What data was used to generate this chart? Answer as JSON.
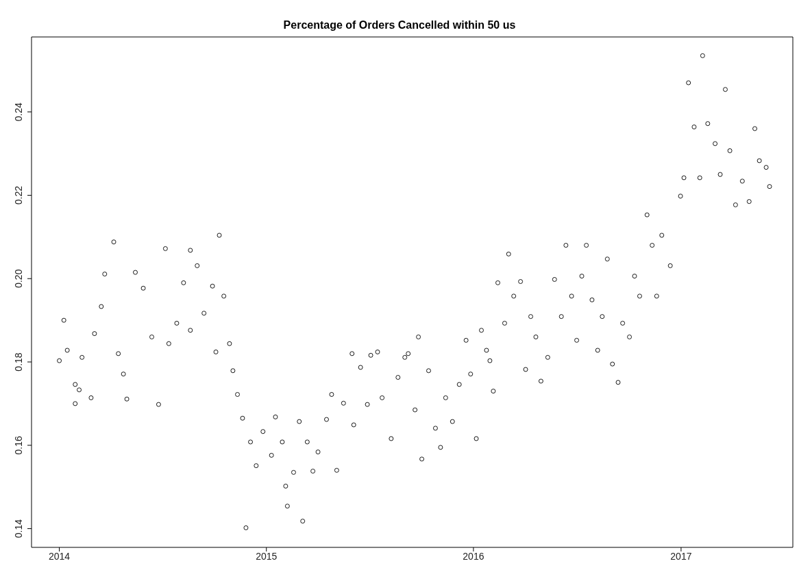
{
  "chart_data": {
    "type": "scatter",
    "title": "Percentage of Orders Cancelled within 50 us",
    "x": [
      "2014-01-01",
      "2014-01-09",
      "2014-01-15",
      "2014-01-29",
      "2014-01-29",
      "2014-02-05",
      "2014-02-10",
      "2014-02-26",
      "2014-03-04",
      "2014-03-16",
      "2014-03-22",
      "2014-04-07",
      "2014-04-15",
      "2014-04-24",
      "2014-04-30",
      "2014-05-15",
      "2014-05-29",
      "2014-06-13",
      "2014-06-25",
      "2014-07-07",
      "2014-07-13",
      "2014-07-27",
      "2014-08-08",
      "2014-08-20",
      "2014-08-20",
      "2014-09-01",
      "2014-09-13",
      "2014-09-28",
      "2014-10-04",
      "2014-10-10",
      "2014-10-18",
      "2014-10-28",
      "2014-11-03",
      "2014-11-11",
      "2014-11-20",
      "2014-11-26",
      "2014-12-04",
      "2014-12-14",
      "2014-12-26",
      "2015-01-10",
      "2015-01-17",
      "2015-01-29",
      "2015-02-04",
      "2015-02-07",
      "2015-02-18",
      "2015-02-28",
      "2015-03-06",
      "2015-03-14",
      "2015-03-24",
      "2015-04-02",
      "2015-04-17",
      "2015-04-26",
      "2015-05-05",
      "2015-05-17",
      "2015-06-01",
      "2015-06-04",
      "2015-06-16",
      "2015-06-28",
      "2015-07-04",
      "2015-07-16",
      "2015-07-24",
      "2015-08-09",
      "2015-08-21",
      "2015-09-02",
      "2015-09-08",
      "2015-09-20",
      "2015-09-26",
      "2015-10-02",
      "2015-10-14",
      "2015-10-26",
      "2015-11-04",
      "2015-11-13",
      "2015-11-25",
      "2015-12-07",
      "2015-12-19",
      "2015-12-27",
      "2016-01-06",
      "2016-01-15",
      "2016-01-24",
      "2016-01-30",
      "2016-02-05",
      "2016-02-13",
      "2016-02-25",
      "2016-03-03",
      "2016-03-12",
      "2016-03-24",
      "2016-04-02",
      "2016-04-11",
      "2016-04-20",
      "2016-04-29",
      "2016-05-11",
      "2016-05-23",
      "2016-06-04",
      "2016-06-12",
      "2016-06-22",
      "2016-07-01",
      "2016-07-10",
      "2016-07-18",
      "2016-07-28",
      "2016-08-07",
      "2016-08-15",
      "2016-08-24",
      "2016-09-02",
      "2016-09-12",
      "2016-09-20",
      "2016-10-02",
      "2016-10-11",
      "2016-10-20",
      "2016-11-02",
      "2016-11-11",
      "2016-11-19",
      "2016-11-28",
      "2016-12-13",
      "2016-12-31",
      "2017-01-06",
      "2017-01-14",
      "2017-01-24",
      "2017-02-03",
      "2017-02-08",
      "2017-02-17",
      "2017-03-02",
      "2017-03-11",
      "2017-03-20",
      "2017-03-28",
      "2017-04-07",
      "2017-04-19",
      "2017-05-01",
      "2017-05-11",
      "2017-05-19",
      "2017-05-31",
      "2017-06-06"
    ],
    "values": [
      0.1803,
      0.19,
      0.1828,
      0.1746,
      0.17,
      0.1733,
      0.1811,
      0.1714,
      0.1868,
      0.1933,
      0.2011,
      0.2088,
      0.182,
      0.1771,
      0.1711,
      0.2015,
      0.1977,
      0.186,
      0.1698,
      0.2072,
      0.1844,
      0.1893,
      0.199,
      0.2068,
      0.1876,
      0.2031,
      0.1917,
      0.1982,
      0.1824,
      0.2104,
      0.1958,
      0.1844,
      0.1779,
      0.1722,
      0.1665,
      0.1402,
      0.1608,
      0.1551,
      0.1633,
      0.1576,
      0.1668,
      0.1608,
      0.1502,
      0.1454,
      0.1535,
      0.1657,
      0.1418,
      0.1608,
      0.1538,
      0.1584,
      0.1662,
      0.1722,
      0.154,
      0.1701,
      0.182,
      0.1649,
      0.1787,
      0.1698,
      0.1816,
      0.1824,
      0.1714,
      0.1616,
      0.1763,
      0.1811,
      0.182,
      0.1685,
      0.186,
      0.1567,
      0.1779,
      0.1641,
      0.1595,
      0.1714,
      0.1657,
      0.1746,
      0.1852,
      0.1771,
      0.1616,
      0.1876,
      0.1828,
      0.1803,
      0.173,
      0.199,
      0.1893,
      0.2059,
      0.1958,
      0.1993,
      0.1782,
      0.1909,
      0.186,
      0.1754,
      0.1811,
      0.1998,
      0.1909,
      0.208,
      0.1958,
      0.1852,
      0.2006,
      0.208,
      0.1949,
      0.1828,
      0.1909,
      0.2047,
      0.1795,
      0.1751,
      0.1893,
      0.186,
      0.2006,
      0.1958,
      0.2153,
      0.208,
      0.1958,
      0.2104,
      0.2031,
      0.2198,
      0.2242,
      0.247,
      0.2364,
      0.2242,
      0.2535,
      0.2372,
      0.2324,
      0.225,
      0.2454,
      0.2307,
      0.2177,
      0.2234,
      0.2185,
      0.236,
      0.2283,
      0.2267,
      0.2221
    ],
    "color": "#000000",
    "marker": "circle",
    "xlim": [
      "2013-11-13",
      "2017-07-17"
    ],
    "xticks": [
      "2014",
      "2015",
      "2016",
      "2017"
    ],
    "ylim": [
      0.1355,
      0.258
    ],
    "yticks": [
      0.14,
      0.16,
      0.18,
      {
        "value": 0.2,
        "label": "0.20"
      },
      0.22,
      0.24
    ],
    "grid": false
  }
}
